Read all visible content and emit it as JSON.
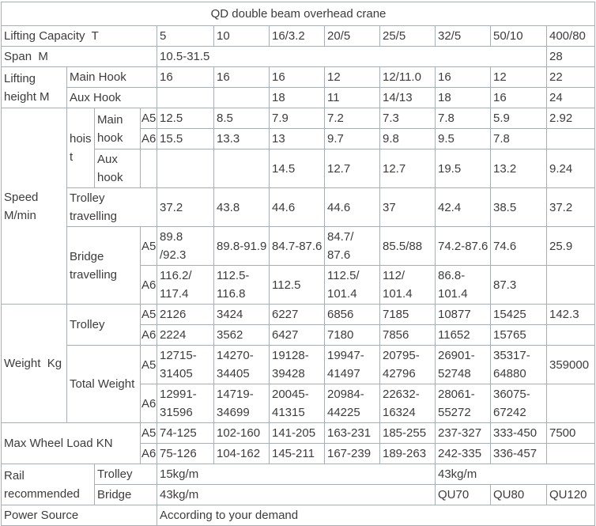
{
  "table": {
    "title": "QD double beam overhead crane",
    "capacity_columns": [
      "5",
      "10",
      "16/3.2",
      "20/5",
      "25/5",
      "32/5",
      "50/10",
      "400/80"
    ],
    "rows": [
      {
        "cells": [
          {
            "t": "QD double beam overhead crane",
            "cs": 12,
            "cls": "title",
            "name": "table-title"
          }
        ]
      },
      {
        "cells": [
          {
            "t": "Lifting Capacity  T",
            "cs": 4,
            "name": "row-label"
          },
          "5",
          "10",
          "16/3.2",
          "20/5",
          "25/5",
          "32/5",
          "50/10",
          "400/80"
        ]
      },
      {
        "cells": [
          {
            "t": "Span  M",
            "cs": 4,
            "name": "row-label"
          },
          {
            "t": "10.5-31.5",
            "cs": 7
          },
          "28"
        ]
      },
      {
        "cells": [
          {
            "t": "Lifting height M",
            "rs": 2,
            "name": "row-label"
          },
          {
            "t": "Main Hook",
            "cs": 3,
            "name": "sub-label"
          },
          "16",
          "16",
          "16",
          "12",
          "12/11.0",
          "16",
          "12",
          "22"
        ]
      },
      {
        "cells": [
          {
            "t": "Aux Hook",
            "cs": 3,
            "name": "sub-label"
          },
          "",
          "",
          "18",
          "11",
          "14/13",
          "18",
          "16",
          "24"
        ]
      },
      {
        "cells": [
          {
            "t": "Speed M/min",
            "rs": 6,
            "name": "row-label"
          },
          {
            "t": "hoist",
            "rs": 3,
            "name": "sub-label"
          },
          {
            "t": "Main hook",
            "rs": 2,
            "name": "sub-label"
          },
          {
            "t": "A5",
            "cls": "acol",
            "name": "duty-class"
          },
          "12.5",
          "8.5",
          "7.9",
          "7.2",
          "7.3",
          "7.8",
          "5.9",
          "2.92"
        ]
      },
      {
        "cells": [
          {
            "t": "A6",
            "cls": "acol",
            "name": "duty-class"
          },
          "15.5",
          "13.3",
          "13",
          "9.7",
          "9.8",
          "9.5",
          "7.8",
          ""
        ]
      },
      {
        "cells": [
          {
            "t": "Aux hook",
            "name": "sub-label"
          },
          {
            "t": "",
            "cls": "acol",
            "name": "duty-class"
          },
          "",
          "",
          "14.5",
          "12.7",
          "12.7",
          "19.5",
          "13.2",
          "9.24"
        ]
      },
      {
        "cells": [
          {
            "t": "Trolley travelling",
            "cs": 3,
            "name": "sub-label"
          },
          "37.2",
          "43.8",
          "44.6",
          "44.6",
          "37",
          "42.4",
          "38.5",
          "37.2"
        ]
      },
      {
        "cells": [
          {
            "t": "Bridge travelling",
            "cs": 2,
            "rs": 2,
            "name": "sub-label"
          },
          {
            "t": "A5",
            "cls": "acol",
            "name": "duty-class"
          },
          "89.8 /92.3",
          "89.8-91.9",
          "84.7-87.6",
          "84.7/ 87.6",
          "85.5/88",
          "74.2-87.6",
          "74.6",
          "25.9"
        ]
      },
      {
        "cells": [
          {
            "t": "A6",
            "cls": "acol",
            "name": "duty-class"
          },
          "116.2/ 117.4",
          "112.5- 116.8",
          "112.5",
          "112.5/ 101.4",
          "112/ 101.4",
          "86.8- 101.4",
          "87.3",
          ""
        ]
      },
      {
        "cells": [
          {
            "t": "Weight  Kg",
            "rs": 4,
            "name": "row-label"
          },
          {
            "t": "Trolley",
            "cs": 2,
            "rs": 2,
            "name": "sub-label"
          },
          {
            "t": "A5",
            "cls": "acol",
            "name": "duty-class"
          },
          "2126",
          "3424",
          "6227",
          "6856",
          "7185",
          "10877",
          "15425",
          "142.3"
        ]
      },
      {
        "cells": [
          {
            "t": "A6",
            "cls": "acol",
            "name": "duty-class"
          },
          "2224",
          "3562",
          "6427",
          "7180",
          "7856",
          "11652",
          "15765",
          ""
        ]
      },
      {
        "cells": [
          {
            "t": "Total Weight",
            "cs": 2,
            "rs": 2,
            "name": "sub-label"
          },
          {
            "t": "A5",
            "cls": "acol",
            "name": "duty-class"
          },
          "12715- 31405",
          "14270- 34405",
          "19128- 39428",
          "19947- 41497",
          "20795- 42796",
          "26901- 52748",
          "35317- 64880",
          "359000"
        ]
      },
      {
        "cells": [
          {
            "t": "A6",
            "cls": "acol",
            "name": "duty-class"
          },
          "12991- 31596",
          "14719- 34699",
          "20045- 41315",
          "20984- 44225",
          "22632- 16324",
          "28061- 55272",
          "36075- 67242",
          ""
        ]
      },
      {
        "cells": [
          {
            "t": "Max Wheel Load KN",
            "cs": 3,
            "rs": 2,
            "name": "row-label"
          },
          {
            "t": "A5",
            "cls": "acol",
            "name": "duty-class"
          },
          "74-125",
          "102-160",
          "141-205",
          "163-231",
          "185-255",
          "237-327",
          "333-450",
          "7500"
        ]
      },
      {
        "cells": [
          {
            "t": "A6",
            "cls": "acol",
            "name": "duty-class"
          },
          "75-126",
          "104-162",
          "145-211",
          "167-239",
          "189-263",
          "242-335",
          "336-457",
          ""
        ]
      },
      {
        "cells": [
          {
            "t": "Rail recommended",
            "cs": 2,
            "rs": 2,
            "name": "row-label"
          },
          {
            "t": "Trolley",
            "cs": 2,
            "name": "sub-label"
          },
          {
            "t": "15kg/m",
            "cs": 5
          },
          {
            "t": "43kg/m",
            "cs": 3
          }
        ]
      },
      {
        "cells": [
          {
            "t": "Bridge",
            "cs": 2,
            "name": "sub-label"
          },
          {
            "t": "43kg/m",
            "cs": 5
          },
          "QU70",
          "QU80",
          "QU120"
        ]
      },
      {
        "cells": [
          {
            "t": "Power Source",
            "cs": 4,
            "name": "row-label"
          },
          {
            "t": "According to your demand",
            "cs": 8
          }
        ]
      }
    ],
    "colors": {
      "text": "#3c3c3c",
      "border": "#a9aeb4",
      "background": "#ffffff"
    }
  }
}
